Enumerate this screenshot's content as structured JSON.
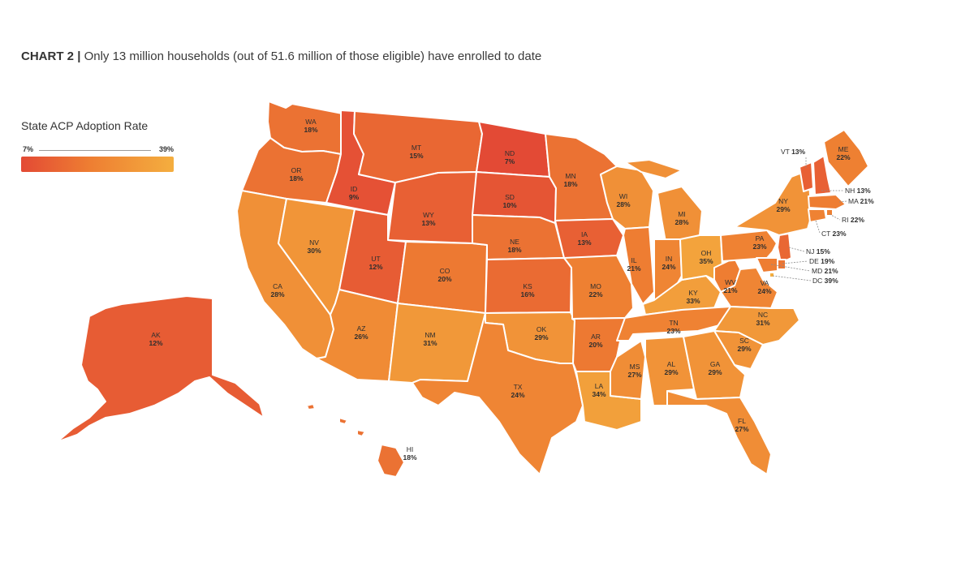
{
  "title": {
    "chart_no": "CHART 2",
    "separator": "|",
    "text": "Only 13 million households (out of 51.6 million of those eligible) have enrolled to date"
  },
  "legend": {
    "title": "State ACP Adoption Rate",
    "min_label": "7%",
    "max_label": "39%",
    "min": 7,
    "max": 39,
    "color_low": "#e34a35",
    "color_mid": "#ee7e32",
    "color_high": "#f4ae3f"
  },
  "chart_data": {
    "type": "choropleth",
    "unit": "%",
    "states": [
      {
        "code": "WA",
        "value": 18
      },
      {
        "code": "OR",
        "value": 18
      },
      {
        "code": "CA",
        "value": 28
      },
      {
        "code": "ID",
        "value": 9
      },
      {
        "code": "NV",
        "value": 30
      },
      {
        "code": "MT",
        "value": 15
      },
      {
        "code": "WY",
        "value": 13
      },
      {
        "code": "UT",
        "value": 12
      },
      {
        "code": "AZ",
        "value": 26
      },
      {
        "code": "CO",
        "value": 20
      },
      {
        "code": "NM",
        "value": 31
      },
      {
        "code": "ND",
        "value": 7
      },
      {
        "code": "SD",
        "value": 10
      },
      {
        "code": "NE",
        "value": 18
      },
      {
        "code": "KS",
        "value": 16
      },
      {
        "code": "OK",
        "value": 29
      },
      {
        "code": "TX",
        "value": 24
      },
      {
        "code": "MN",
        "value": 18
      },
      {
        "code": "IA",
        "value": 13
      },
      {
        "code": "MO",
        "value": 22
      },
      {
        "code": "AR",
        "value": 20
      },
      {
        "code": "LA",
        "value": 34
      },
      {
        "code": "WI",
        "value": 28
      },
      {
        "code": "IL",
        "value": 21
      },
      {
        "code": "MS",
        "value": 27
      },
      {
        "code": "MI",
        "value": 28
      },
      {
        "code": "IN",
        "value": 24
      },
      {
        "code": "KY",
        "value": 33
      },
      {
        "code": "TN",
        "value": 23
      },
      {
        "code": "AL",
        "value": 29
      },
      {
        "code": "OH",
        "value": 35
      },
      {
        "code": "WV",
        "value": 21
      },
      {
        "code": "VA",
        "value": 24
      },
      {
        "code": "NC",
        "value": 31
      },
      {
        "code": "SC",
        "value": 29
      },
      {
        "code": "GA",
        "value": 29
      },
      {
        "code": "FL",
        "value": 27
      },
      {
        "code": "PA",
        "value": 23
      },
      {
        "code": "NY",
        "value": 29
      },
      {
        "code": "ME",
        "value": 22
      },
      {
        "code": "AK",
        "value": 12
      },
      {
        "code": "HI",
        "value": 18
      },
      {
        "code": "VT",
        "value": 13
      },
      {
        "code": "NH",
        "value": 13
      },
      {
        "code": "MA",
        "value": 21
      },
      {
        "code": "RI",
        "value": 22
      },
      {
        "code": "CT",
        "value": 23
      },
      {
        "code": "NJ",
        "value": 15
      },
      {
        "code": "DE",
        "value": 19
      },
      {
        "code": "MD",
        "value": 21
      },
      {
        "code": "DC",
        "value": 39
      }
    ]
  }
}
